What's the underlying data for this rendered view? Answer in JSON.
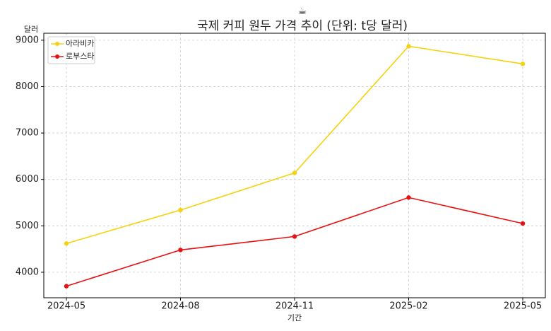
{
  "chart_data": {
    "type": "line",
    "title_icon": "☕",
    "title": "국제 커피 원두 가격 추이 (단위: t당 달러)",
    "x_label": "기간",
    "y_label": "달러",
    "categories": [
      "2024-05",
      "2024-08",
      "2024-11",
      "2025-02",
      "2025-05"
    ],
    "series": [
      {
        "name": "아라비카",
        "color": "#f5d20f",
        "values": [
          4620,
          5340,
          6140,
          8870,
          8490
        ]
      },
      {
        "name": "로부스타",
        "color": "#e81010",
        "values": [
          3700,
          4480,
          4770,
          5610,
          5050
        ]
      }
    ],
    "ylim": [
      3450,
      9150
    ],
    "yticks": [
      4000,
      5000,
      6000,
      7000,
      8000,
      9000
    ],
    "grid": true,
    "legend": "upper-left"
  }
}
